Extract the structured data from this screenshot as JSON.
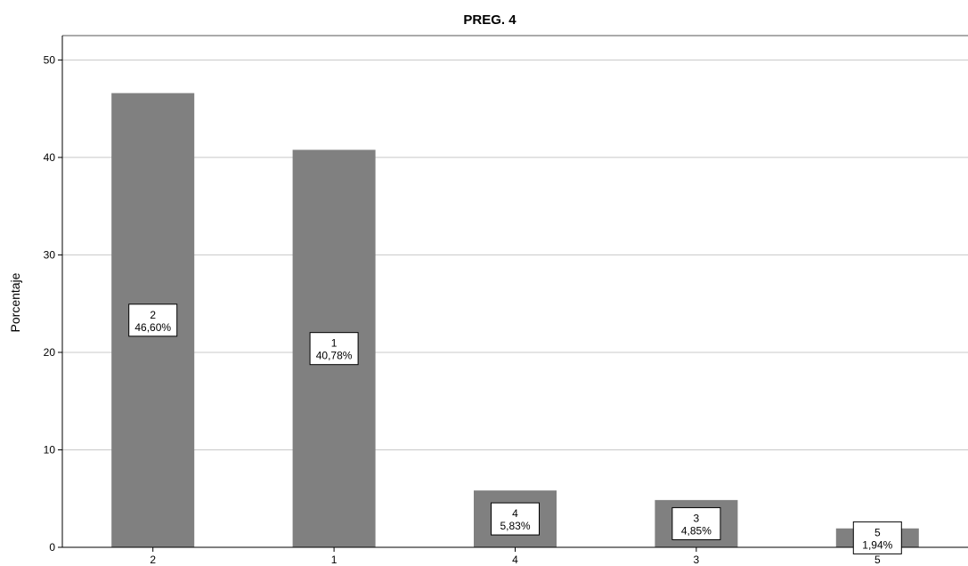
{
  "chart_data": {
    "type": "bar",
    "title": "PREG. 4",
    "xlabel": "",
    "ylabel": "Porcentaje",
    "ylim": [
      0,
      52.5
    ],
    "yticks": [
      0,
      10,
      20,
      30,
      40,
      50
    ],
    "grid": true,
    "legend": "none",
    "categories": [
      "2",
      "1",
      "4",
      "3",
      "5"
    ],
    "values": [
      46.6,
      40.78,
      5.83,
      4.85,
      1.94
    ],
    "data_labels": [
      {
        "category": "2",
        "percent": "46,60%"
      },
      {
        "category": "1",
        "percent": "40,78%"
      },
      {
        "category": "4",
        "percent": "5,83%"
      },
      {
        "category": "3",
        "percent": "4,85%"
      },
      {
        "category": "5",
        "percent": "1,94%"
      }
    ],
    "colors": {
      "bar": "#808080",
      "grid": "#c8c8c8",
      "axis": "#000000",
      "label_box_fill": "#ffffff",
      "label_box_stroke": "#000000"
    }
  }
}
